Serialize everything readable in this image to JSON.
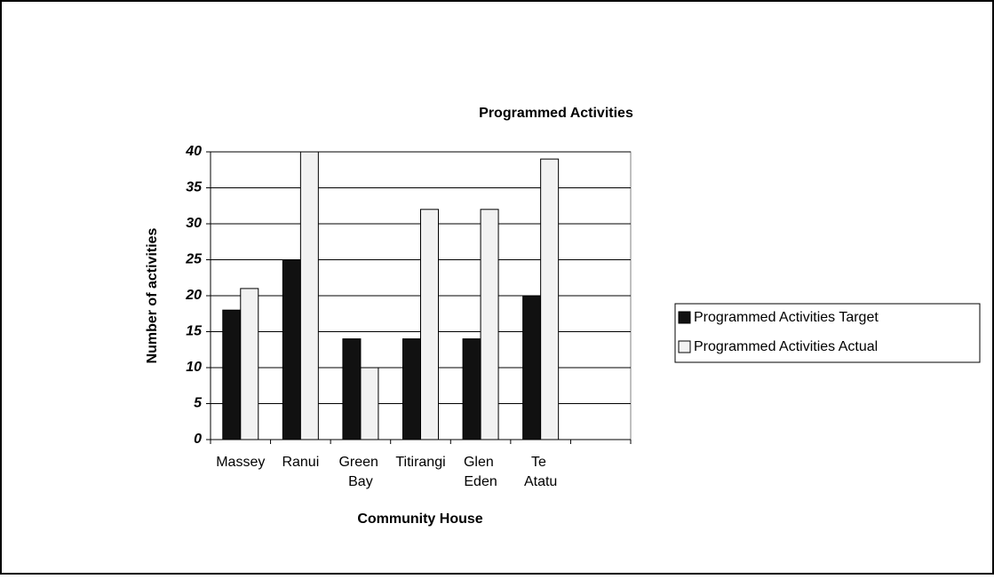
{
  "chart_data": {
    "type": "bar",
    "title": "Programmed Activities",
    "x_label": "Community House",
    "y_label": "Number of activities",
    "categories": [
      "Massey",
      "Ranui",
      "Green Bay",
      "Titirangi",
      "Glen Eden",
      "Te Atatu",
      null
    ],
    "series": [
      {
        "name": "Programmed Activities Target",
        "color": "#111111",
        "values": [
          18,
          25,
          14,
          14,
          14,
          20,
          null
        ]
      },
      {
        "name": "Programmed Activities Actual",
        "color": "#f2f2f2",
        "values": [
          21,
          40,
          10,
          32,
          32,
          39,
          null
        ]
      }
    ],
    "ylim": [
      0,
      40
    ],
    "yticks": [
      0,
      5,
      10,
      15,
      20,
      25,
      30,
      35,
      40
    ],
    "grid": true,
    "legend": "right"
  }
}
